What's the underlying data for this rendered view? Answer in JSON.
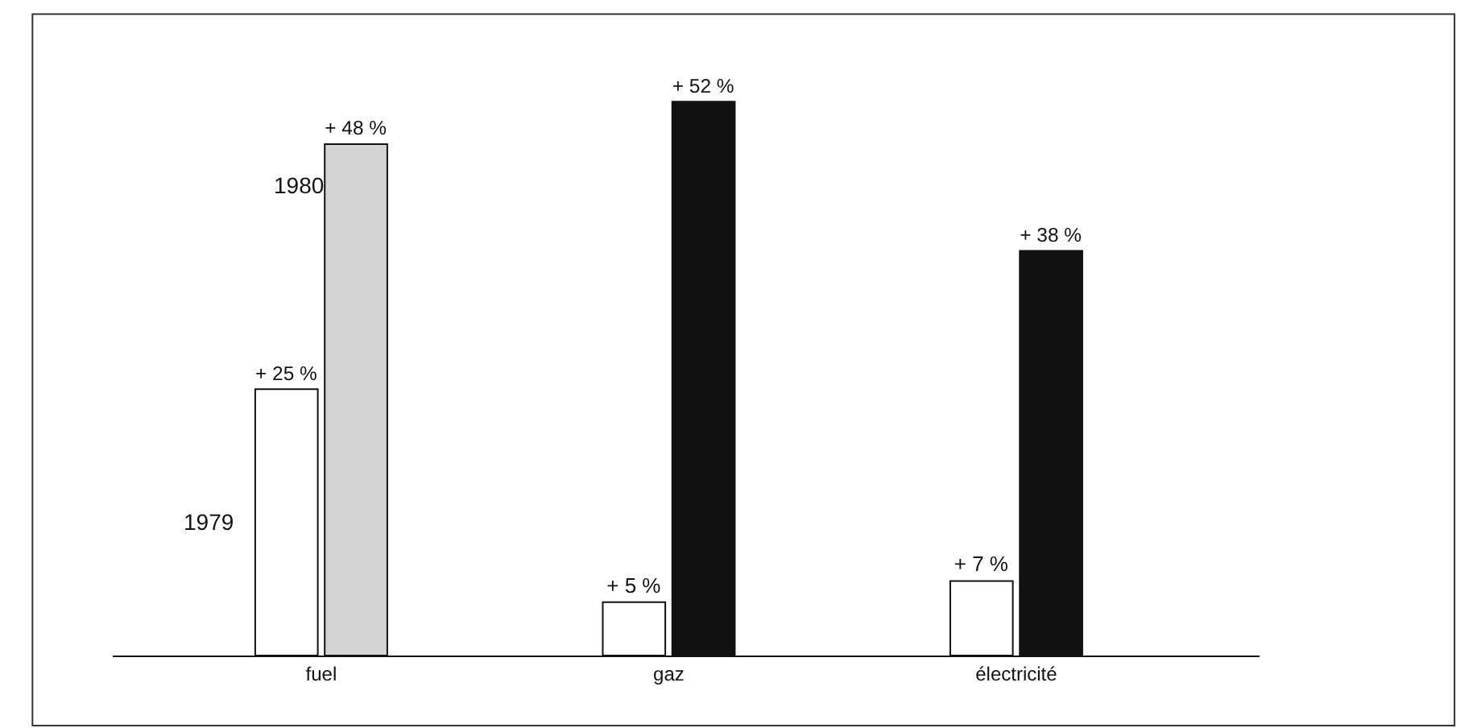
{
  "chart_data": {
    "type": "bar",
    "categories": [
      "fuel",
      "gaz",
      "électricité"
    ],
    "series": [
      {
        "name": "1979",
        "colors": [
          "#ffffff",
          "#ffffff",
          "#ffffff"
        ],
        "values": [
          25,
          5,
          7
        ],
        "value_labels": [
          "+ 25 %",
          "+ 5 %",
          "+ 7 %"
        ]
      },
      {
        "name": "1980",
        "colors": [
          "#d4d4d4",
          "#111111",
          "#111111"
        ],
        "values": [
          48,
          52,
          38
        ],
        "value_labels": [
          "+ 48 %",
          "+ 52 %",
          "+ 38 %"
        ]
      }
    ],
    "legend": false
  }
}
